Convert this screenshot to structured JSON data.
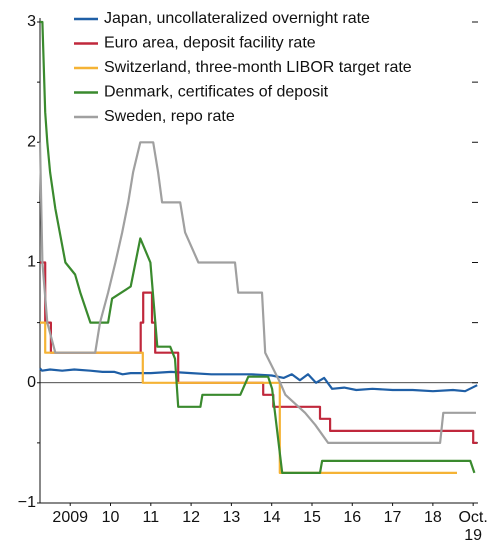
{
  "chart_data": {
    "type": "line",
    "xlim": [
      2008.75,
      2019.62
    ],
    "xticks": [
      {
        "value": 2009.5,
        "label": "2009"
      },
      {
        "value": 2010.5,
        "label": "10"
      },
      {
        "value": 2011.5,
        "label": "11"
      },
      {
        "value": 2012.5,
        "label": "12"
      },
      {
        "value": 2013.5,
        "label": "13"
      },
      {
        "value": 2014.5,
        "label": "14"
      },
      {
        "value": 2015.5,
        "label": "15"
      },
      {
        "value": 2016.5,
        "label": "16"
      },
      {
        "value": 2017.5,
        "label": "17"
      },
      {
        "value": 2018.5,
        "label": "18"
      },
      {
        "value": 2019.5,
        "label": "Oct. 19"
      }
    ],
    "ylim": [
      -1,
      3
    ],
    "yticks": [
      {
        "value": -1,
        "label": "−1"
      },
      0,
      1,
      2,
      3
    ],
    "yminorticks": [
      -0.5,
      0.5,
      1.5,
      2.5
    ],
    "series": [
      {
        "name": "Japan, uncollateralized overnight rate",
        "color": "#1f5fa6",
        "x": [
          2008.75,
          2008.8,
          2009,
          2009.3,
          2009.6,
          2010,
          2010.3,
          2010.6,
          2010.8,
          2011,
          2011.5,
          2012,
          2012.5,
          2013,
          2013.5,
          2014,
          2014.5,
          2014.8,
          2015,
          2015.2,
          2015.4,
          2015.6,
          2015.8,
          2016,
          2016.3,
          2016.6,
          2017,
          2017.5,
          2018,
          2018.5,
          2019,
          2019.3,
          2019.6
        ],
        "values": [
          0.12,
          0.1,
          0.11,
          0.1,
          0.11,
          0.1,
          0.09,
          0.09,
          0.07,
          0.08,
          0.08,
          0.09,
          0.08,
          0.07,
          0.07,
          0.07,
          0.06,
          0.04,
          0.07,
          0.02,
          0.07,
          0.0,
          0.04,
          -0.05,
          -0.04,
          -0.06,
          -0.05,
          -0.06,
          -0.06,
          -0.07,
          -0.06,
          -0.07,
          -0.02
        ]
      },
      {
        "name": "Euro area, deposit facility rate",
        "color": "#c0283c",
        "x": [
          2008.75,
          2008.88,
          2008.88,
          2009.02,
          2009.02,
          2011.25,
          2011.25,
          2011.31,
          2011.31,
          2011.53,
          2011.53,
          2011.61,
          2011.61,
          2012.18,
          2012.18,
          2014.29,
          2014.29,
          2014.54,
          2014.54,
          2015.7,
          2015.7,
          2015.95,
          2015.95,
          2019.5,
          2019.5,
          2019.6
        ],
        "values": [
          1.0,
          1.0,
          0.5,
          0.5,
          0.25,
          0.25,
          0.5,
          0.5,
          0.75,
          0.75,
          0.5,
          0.5,
          0.25,
          0.25,
          0.0,
          0.0,
          -0.1,
          -0.1,
          -0.2,
          -0.2,
          -0.3,
          -0.3,
          -0.4,
          -0.4,
          -0.5,
          -0.5
        ]
      },
      {
        "name": "Switzerland, three-month LIBOR target rate",
        "color": "#f5b335",
        "x": [
          2008.75,
          2008.88,
          2008.88,
          2011.3,
          2011.3,
          2014.7,
          2014.7,
          2019.1
        ],
        "values": [
          0.5,
          0.5,
          0.25,
          0.25,
          0.0,
          0.0,
          -0.75,
          -0.75
        ]
      },
      {
        "name": "Denmark, certificates of deposit",
        "color": "#3a8a2e",
        "x": [
          2008.75,
          2008.81,
          2008.88,
          2008.93,
          2009.0,
          2009.13,
          2009.38,
          2009.62,
          2009.75,
          2010.0,
          2010.44,
          2010.54,
          2011.0,
          2011.24,
          2011.49,
          2011.66,
          2011.98,
          2012.1,
          2012.18,
          2012.73,
          2012.78,
          2013.72,
          2013.92,
          2014.41,
          2014.51,
          2014.76,
          2015.7,
          2015.75,
          2019.43,
          2019.53
        ],
        "values": [
          3.0,
          3.0,
          2.25,
          2.0,
          1.75,
          1.45,
          1.0,
          0.9,
          0.75,
          0.5,
          0.5,
          0.7,
          0.8,
          1.2,
          1.0,
          0.3,
          0.3,
          0.2,
          -0.2,
          -0.2,
          -0.1,
          -0.1,
          0.05,
          0.05,
          -0.05,
          -0.75,
          -0.75,
          -0.65,
          -0.65,
          -0.75
        ]
      },
      {
        "name": "Sweden, repo rate",
        "color": "#a0a0a0",
        "x": [
          2008.75,
          2008.81,
          2008.93,
          2009.13,
          2010.0,
          2010.12,
          2010.24,
          2010.44,
          2010.62,
          2010.79,
          2010.94,
          2011.06,
          2011.24,
          2011.56,
          2011.68,
          2011.78,
          2012.23,
          2012.35,
          2012.68,
          2013.59,
          2013.67,
          2014.26,
          2014.34,
          2014.71,
          2014.84,
          2015.33,
          2015.58,
          2015.9,
          2018.68,
          2018.76,
          2019.57
        ],
        "values": [
          2.0,
          1.0,
          0.5,
          0.25,
          0.25,
          0.25,
          0.5,
          0.75,
          1.0,
          1.25,
          1.5,
          1.75,
          2.0,
          2.0,
          1.75,
          1.5,
          1.5,
          1.25,
          1.0,
          1.0,
          0.75,
          0.75,
          0.25,
          0.0,
          -0.1,
          -0.25,
          -0.35,
          -0.5,
          -0.5,
          -0.25,
          -0.25
        ]
      }
    ]
  }
}
